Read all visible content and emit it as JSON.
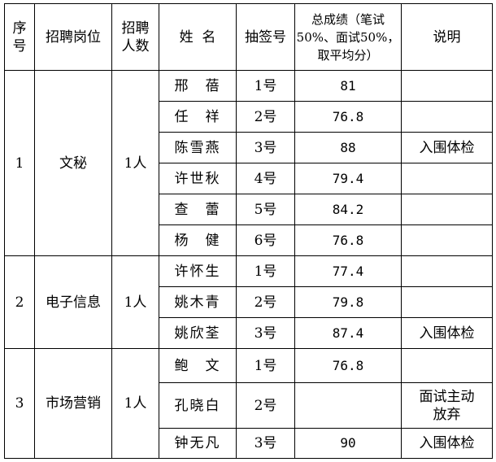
{
  "headers": {
    "seq": [
      "序",
      "号"
    ],
    "position": "招聘岗位",
    "count": [
      "招聘",
      "人数"
    ],
    "name": "姓  名",
    "draw": "抽签号",
    "score": [
      "总成绩（笔试",
      "50%、面试50%，",
      "取平均分）"
    ],
    "note": "说明"
  },
  "groups": [
    {
      "seq": "1",
      "position": "文秘",
      "count": "1人",
      "rows": [
        {
          "name": "邢　蓓",
          "draw": "1号",
          "score": "81",
          "note": ""
        },
        {
          "name": "任　祥",
          "draw": "2号",
          "score": "76.8",
          "note": ""
        },
        {
          "name": "陈雪燕",
          "draw": "3号",
          "score": "88",
          "note": "入围体检"
        },
        {
          "name": "许世秋",
          "draw": "4号",
          "score": "79.4",
          "note": ""
        },
        {
          "name": "查　蕾",
          "draw": "5号",
          "score": "84.2",
          "note": ""
        },
        {
          "name": "杨　健",
          "draw": "6号",
          "score": "76.8",
          "note": ""
        }
      ]
    },
    {
      "seq": "2",
      "position": "电子信息",
      "count": "1人",
      "rows": [
        {
          "name": "许怀生",
          "draw": "1号",
          "score": "77.4",
          "note": ""
        },
        {
          "name": "姚木青",
          "draw": "2号",
          "score": "79.8",
          "note": ""
        },
        {
          "name": "姚欣荃",
          "draw": "3号",
          "score": "87.4",
          "note": "入围体检"
        }
      ]
    },
    {
      "seq": "3",
      "position": "市场营销",
      "count": "1人",
      "rows": [
        {
          "name": "鲍　文",
          "draw": "1号",
          "score": "76.8",
          "note": ""
        },
        {
          "name": "孔晓白",
          "draw": "2号",
          "score": "",
          "note": "面试主动放弃"
        },
        {
          "name": "钟无凡",
          "draw": "3号",
          "score": "90",
          "note": "入围体检"
        }
      ]
    }
  ]
}
